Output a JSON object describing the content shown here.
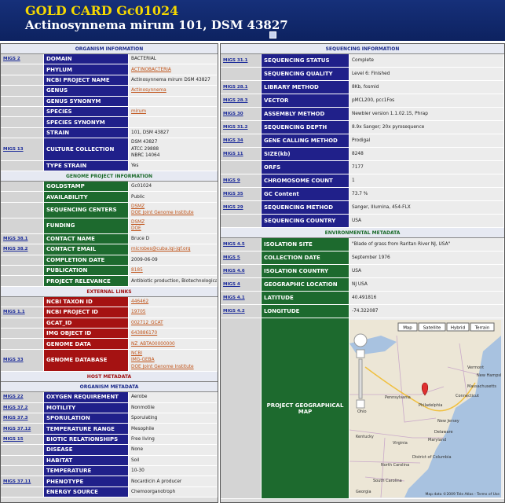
{
  "header": {
    "title": "GOLD CARD Gc01024",
    "subtitle": "Actinosynnema mirum 101, DSM 43827"
  },
  "left": [
    {
      "title": "ORGANISM INFORMATION",
      "rows": [
        {
          "migs": "MIGS 2",
          "label": "DOMAIN",
          "value": "BACTERIAL"
        },
        {
          "label": "PHYLUM",
          "value": "ACTINOBACTERIA",
          "link": true
        },
        {
          "label": "NCBI PROJECT NAME",
          "value": "Actinosynnema mirum DSM 43827"
        },
        {
          "label": "GENUS",
          "value": "Actinosynnema",
          "link": true
        },
        {
          "label": "GENUS SYNONYM"
        },
        {
          "label": "SPECIES",
          "value": "mirum",
          "link": true
        },
        {
          "label": "SPECIES SYNONYM"
        },
        {
          "label": "STRAIN",
          "value": "101, DSM 43827"
        },
        {
          "migs": "MIGS 13",
          "label": "CULTURE COLLECTION",
          "value": [
            "DSM 43827",
            "ATCC 29888",
            "NBRC 14064"
          ]
        },
        {
          "label": "TYPE STRAIN",
          "value": "Yes"
        }
      ]
    },
    {
      "title": "GENOME PROJECT INFORMATION",
      "rows": [
        {
          "label": "GOLDSTAMP",
          "value": "Gc01024"
        },
        {
          "label": "AVAILABILITY",
          "value": "Public"
        },
        {
          "label": "SEQUENCING CENTERS",
          "value": [
            "DSMZ",
            "DOE Joint Genome Institute"
          ],
          "link": true
        },
        {
          "label": "FUNDING",
          "value": [
            "DSMZ",
            "DOE"
          ],
          "link": true
        },
        {
          "migs": "MIGS 38.1",
          "label": "CONTACT NAME",
          "value": "Bruce D"
        },
        {
          "migs": "MIGS 38.2",
          "label": "CONTACT EMAIL",
          "value": "microbes@cuba.lgi-jgf.org",
          "link": true
        },
        {
          "label": "COMPLETION DATE",
          "value": "2009-06-09"
        },
        {
          "label": "PUBLICATION",
          "value": "8185",
          "link": true
        },
        {
          "label": "PROJECT RELEVANCE",
          "value": "Antibiotic production, Biotechnological, GEBA"
        }
      ]
    },
    {
      "title": "EXTERNAL LINKS",
      "rows": [
        {
          "label": "NCBI TAXON ID",
          "value": "446462",
          "link": true
        },
        {
          "migs": "MIGS 1.1",
          "label": "NCBI PROJECT ID",
          "value": "19705",
          "link": true
        },
        {
          "label": "GCAT_ID",
          "value": "002712_GCAT",
          "link": true
        },
        {
          "label": "IMG OBJECT ID",
          "value": "643886170",
          "link": true
        },
        {
          "label": "GENOME DATA",
          "value": "NZ_ABTA00000000",
          "link": true
        },
        {
          "migs": "MIGS 33",
          "label": "GENOME DATABASE",
          "value": [
            "NCBI",
            "IMG-GEBA",
            "DOE Joint Genome Institute"
          ],
          "link": true
        }
      ]
    },
    {
      "title": "HOST METADATA",
      "rows": []
    },
    {
      "title": "ORGANISM METADATA",
      "rows": [
        {
          "migs": "MIGS 22",
          "label": "OXYGEN REQUIREMENT",
          "value": "Aerobe"
        },
        {
          "migs": "MIGS 37.2",
          "label": "MOTILITY",
          "value": "Nonmotile"
        },
        {
          "migs": "MIGS 37.3",
          "label": "SPORULATION",
          "value": "Sporulating"
        },
        {
          "migs": "MIGS 37.12",
          "label": "TEMPERATURE RANGE",
          "value": "Mesophile"
        },
        {
          "migs": "MIGS 15",
          "label": "BIOTIC RELATIONSHIPS",
          "value": "Free living"
        },
        {
          "label": "DISEASE",
          "value": "None"
        },
        {
          "label": "HABITAT",
          "value": "Soil"
        },
        {
          "label": "TEMPERATURE",
          "value": "10-30"
        },
        {
          "migs": "MIGS 37.11",
          "label": "PHENOTYPE",
          "value": "Nocardicin A producer"
        },
        {
          "label": "ENERGY SOURCE",
          "value": "Chemoorganotroph"
        }
      ]
    }
  ],
  "right": [
    {
      "title": "SEQUENCING INFORMATION",
      "rows": [
        {
          "migs": "MIGS 31.1",
          "label": "SEQUENCING STATUS",
          "value": "Complete"
        },
        {
          "label": "SEQUENCING QUALITY",
          "value": "Level 6: Finished"
        },
        {
          "migs": "MIGS 28.1",
          "label": "LIBRARY METHOD",
          "value": "8Kb, fosmid"
        },
        {
          "migs": "MIGS 28.3",
          "label": "VECTOR",
          "value": "pMCL200, pcc1Fos"
        },
        {
          "migs": "MIGS 30",
          "label": "ASSEMBLY METHOD",
          "value": "Newbler version 1.1.02.15, Phrap"
        },
        {
          "migs": "MIGS 31.2",
          "label": "SEQUENCING DEPTH",
          "value": "8.9x Sanger; 20x pyrosequence"
        },
        {
          "migs": "MIGS 34",
          "label": "GENE CALLING METHOD",
          "value": "Prodigal"
        },
        {
          "migs": "MIGS 11",
          "label": "SIZE(kb)",
          "value": "8248"
        },
        {
          "label": "ORFS",
          "value": "7177"
        },
        {
          "migs": "MIGS 9",
          "label": "CHROMOSOME COUNT",
          "value": "1"
        },
        {
          "migs": "MIGS 35",
          "label": "GC Content",
          "value": "73.7 %"
        },
        {
          "migs": "MIGS 29",
          "label": "SEQUENCING METHOD",
          "value": "Sanger, Illumina, 454-FLX"
        },
        {
          "label": "SEQUENCING COUNTRY",
          "value": "USA"
        }
      ]
    },
    {
      "title": "ENVIRONMENTAL METADATA",
      "rows": [
        {
          "migs": "MIGS 4.5",
          "label": "ISOLATION SITE",
          "value": "\"Blade of grass from Raritan River NJ, USA\""
        },
        {
          "migs": "MIGS 5",
          "label": "COLLECTION DATE",
          "value": "September 1976"
        },
        {
          "migs": "MIGS 4.6",
          "label": "ISOLATION COUNTRY",
          "value": "USA"
        },
        {
          "migs": "MIGS 4",
          "label": "GEOGRAPHIC LOCATION",
          "value": "NJ USA"
        },
        {
          "migs": "MIGS 4.1",
          "label": "LATITUDE",
          "value": "40.491816"
        },
        {
          "migs": "MIGS 4.2",
          "label": "LONGITUDE",
          "value": "-74.322087"
        }
      ],
      "map": {
        "label": "PROJECT GEOGRAPHICAL MAP",
        "buttons": [
          "Map",
          "Satellite",
          "Hybrid",
          "Terrain"
        ],
        "places": [
          "Vermont",
          "New Hampshire",
          "Massachusetts",
          "Connecticut",
          "Pennsylvania",
          "Philadelphia",
          "New Jersey",
          "Delaware",
          "Maryland",
          "District of Columbia",
          "Ohio",
          "Virginia",
          "Kentucky",
          "North Carolina",
          "South Carolina",
          "Georgia"
        ],
        "attribution": "Map data ©2009 Tele Atlas - Terms of Use"
      }
    }
  ]
}
